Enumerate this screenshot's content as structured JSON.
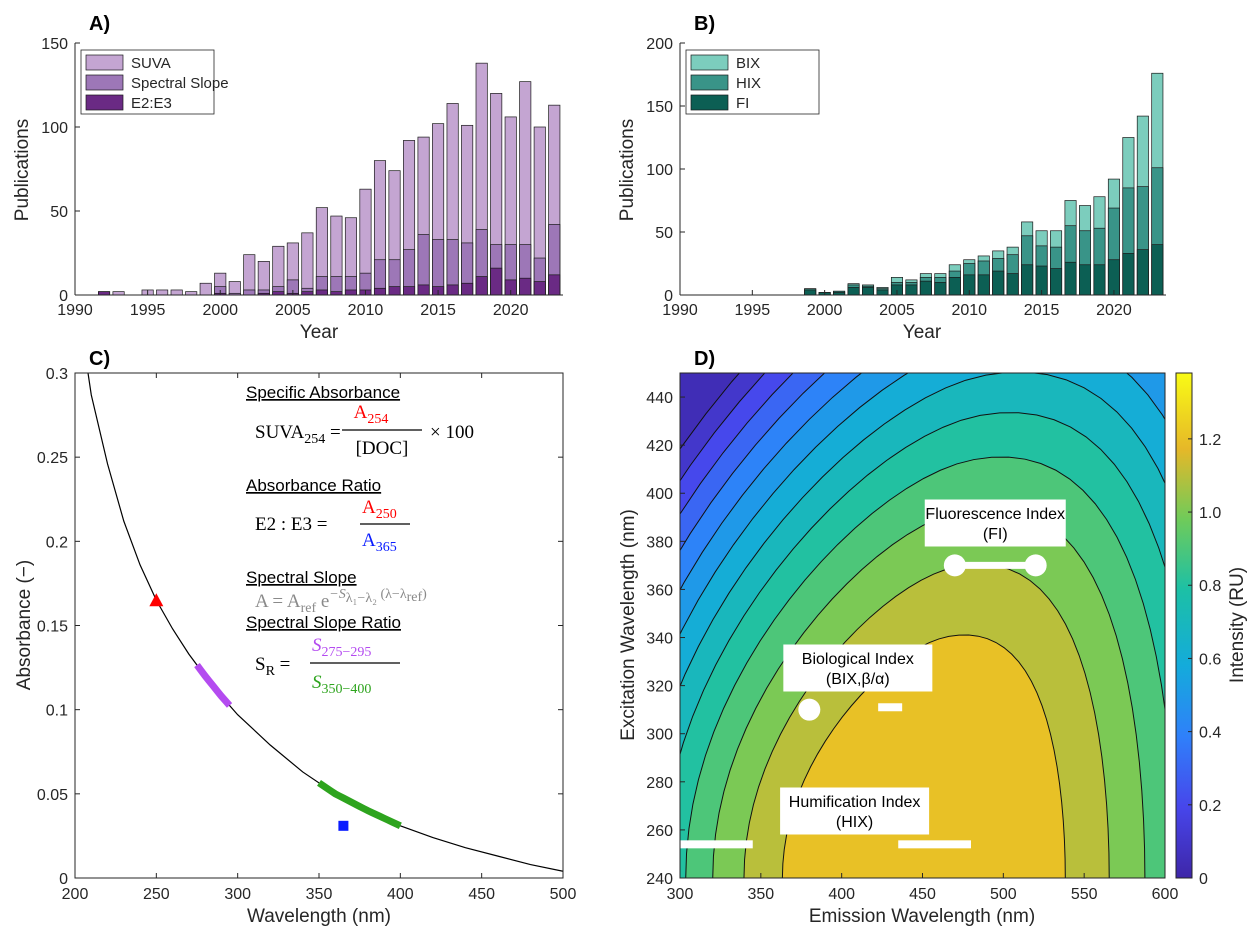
{
  "chart_data": [
    {
      "panel": "A)",
      "type": "bar",
      "stacked": true,
      "ylabel": "Publications",
      "xlabel": "Year",
      "xlim": [
        1990,
        2023.6
      ],
      "ylim": [
        0,
        150
      ],
      "xticks": [
        1990,
        1995,
        2000,
        2005,
        2010,
        2015,
        2020
      ],
      "yticks": [
        0,
        50,
        100,
        150
      ],
      "legend_position": "top-left",
      "years": [
        1992,
        1993,
        1995,
        1996,
        1997,
        1998,
        1999,
        2000,
        2001,
        2002,
        2003,
        2004,
        2005,
        2006,
        2007,
        2008,
        2009,
        2010,
        2011,
        2012,
        2013,
        2014,
        2015,
        2016,
        2017,
        2018,
        2019,
        2020,
        2021,
        2022,
        2023
      ],
      "series": [
        {
          "name": "SUVA",
          "color": "#c4a5d2",
          "totals": [
            2,
            2,
            3,
            3,
            3,
            2,
            7,
            13,
            8,
            24,
            20,
            29,
            31,
            37,
            52,
            47,
            46,
            63,
            80,
            74,
            92,
            94,
            102,
            114,
            101,
            138,
            120,
            106,
            127,
            100,
            113
          ]
        },
        {
          "name": "Spectral Slope",
          "color": "#9d77b7",
          "totals": [
            0,
            0,
            0,
            0,
            0,
            0,
            0,
            5,
            1,
            3,
            3,
            5,
            9,
            4,
            11,
            11,
            11,
            13,
            21,
            21,
            27,
            36,
            33,
            33,
            31,
            39,
            30,
            30,
            30,
            22,
            42
          ]
        },
        {
          "name": "E2:E3",
          "color": "#6a2a84",
          "totals": [
            2,
            0,
            0,
            0,
            0,
            0,
            0,
            1,
            0,
            0,
            1,
            2,
            1,
            2,
            3,
            2,
            3,
            3,
            4,
            5,
            5,
            6,
            5,
            6,
            7,
            11,
            16,
            9,
            10,
            8,
            12
          ]
        }
      ]
    },
    {
      "panel": "B)",
      "type": "bar",
      "stacked": true,
      "ylabel": "Publications",
      "xlabel": "Year",
      "xlim": [
        1990,
        2023.6
      ],
      "ylim": [
        0,
        200
      ],
      "xticks": [
        1990,
        1995,
        2000,
        2005,
        2010,
        2015,
        2020
      ],
      "yticks": [
        0,
        50,
        100,
        150,
        200
      ],
      "legend_position": "top-left",
      "years": [
        1999,
        2000,
        2001,
        2002,
        2003,
        2004,
        2005,
        2006,
        2007,
        2008,
        2009,
        2010,
        2011,
        2012,
        2013,
        2014,
        2015,
        2016,
        2017,
        2018,
        2019,
        2020,
        2021,
        2022,
        2023
      ],
      "series": [
        {
          "name": "BIX",
          "color": "#7ccdbd",
          "totals": [
            5,
            2,
            3,
            9,
            8,
            6,
            14,
            12,
            17,
            17,
            24,
            28,
            31,
            35,
            38,
            58,
            51,
            51,
            75,
            71,
            78,
            92,
            125,
            142,
            176
          ]
        },
        {
          "name": "HIX",
          "color": "#399488",
          "totals": [
            5,
            2,
            3,
            8,
            7,
            5,
            10,
            10,
            14,
            14,
            19,
            25,
            27,
            29,
            32,
            47,
            39,
            38,
            55,
            51,
            53,
            69,
            85,
            86,
            101
          ]
        },
        {
          "name": "FI",
          "color": "#0c5f54",
          "totals": [
            4,
            2,
            2,
            6,
            6,
            4,
            8,
            8,
            11,
            10,
            14,
            16,
            16,
            19,
            17,
            24,
            23,
            21,
            26,
            24,
            24,
            28,
            33,
            36,
            40
          ]
        }
      ]
    },
    {
      "panel": "C)",
      "type": "line",
      "xlabel": "Wavelength (nm)",
      "ylabel": "Absorbance (−)",
      "xlim": [
        200,
        500
      ],
      "ylim": [
        0,
        0.3
      ],
      "xticks": [
        200,
        250,
        300,
        350,
        400,
        450,
        500
      ],
      "yticks": [
        0,
        0.05,
        0.1,
        0.15,
        0.2,
        0.25,
        0.3
      ],
      "curve": {
        "x": [
          208,
          210,
          220,
          230,
          240,
          250,
          260,
          270,
          280,
          290,
          300,
          320,
          340,
          360,
          380,
          400,
          420,
          440,
          460,
          480,
          500
        ],
        "y": [
          0.3,
          0.287,
          0.246,
          0.212,
          0.186,
          0.165,
          0.148,
          0.133,
          0.12,
          0.108,
          0.097,
          0.079,
          0.063,
          0.05,
          0.04,
          0.031,
          0.024,
          0.018,
          0.013,
          0.008,
          0.004
        ]
      },
      "markers": [
        {
          "label": "A254",
          "x": 250,
          "y": 0.165,
          "shape": "triangle",
          "color": "#ff0000"
        },
        {
          "label": "A365",
          "x": 365,
          "y": 0.031,
          "shape": "square",
          "color": "#0a1cff"
        }
      ],
      "segments": [
        {
          "label": "S275-295",
          "x": [
            275,
            295
          ],
          "color": "#b44bf0"
        },
        {
          "label": "S350-400",
          "x": [
            350,
            400
          ],
          "color": "#2ea41e"
        }
      ],
      "equations": {
        "h1": "Specific Absorbance",
        "suva_lhs": "SUVA",
        "suva_sub": "254",
        "suva_num": "A",
        "suva_num_sub": "254",
        "suva_den": "[DOC]",
        "suva_tail": "× 100",
        "h2": "Absorbance Ratio",
        "ratio_lhs": "E2 : E3 =",
        "ratio_num": "A",
        "ratio_num_sub": "250",
        "ratio_den": "A",
        "ratio_den_sub": "365",
        "h3": "Spectral Slope",
        "slope_eq": "A = A",
        "slope_ref": "ref",
        "slope_e": "e",
        "slope_exp": "−S",
        "slope_exp_sub": "λ₁−λ₂",
        "slope_exp_tail": "(λ−λ",
        "slope_exp_ref": "ref",
        "slope_exp_close": ")",
        "h4": "Spectral Slope Ratio",
        "sr_lhs": "S",
        "sr_sub": "R",
        "sr_eq": "=",
        "sr_num": "S",
        "sr_num_sub": "275−295",
        "sr_den": "S",
        "sr_den_sub": "350−400"
      }
    },
    {
      "panel": "D)",
      "type": "heatmap",
      "xlabel": "Emission Wavelength (nm)",
      "ylabel": "Excitation Wavelength (nm)",
      "colorbar_label": "Intensity (RU)",
      "xlim": [
        300,
        600
      ],
      "ylim": [
        240,
        450
      ],
      "xticks": [
        300,
        350,
        400,
        450,
        500,
        550,
        600
      ],
      "yticks": [
        240,
        260,
        280,
        300,
        320,
        340,
        360,
        380,
        400,
        420,
        440
      ],
      "clim": [
        0,
        1.38
      ],
      "colorbar_ticks": [
        0,
        0.2,
        0.4,
        0.6,
        0.8,
        1.0,
        1.2
      ],
      "colorbar_tick_labels": [
        "0",
        "0.2",
        "0.4",
        "0.6",
        "0.8",
        "1.0",
        "1.2"
      ],
      "peak": {
        "em": 445,
        "ex": 240,
        "intensity": 1.35
      },
      "annotations": [
        {
          "label1": "Fluorescence Index",
          "label2": "(FI)",
          "em": [
            470,
            520
          ],
          "ex": 370,
          "kind": "dots"
        },
        {
          "label1": "Biological Index",
          "label2": "(BIX,β/α)",
          "em": [
            380,
            430
          ],
          "ex": 310,
          "kind": "dot-bar"
        },
        {
          "label1": "Humification Index",
          "label2": "(HIX)",
          "em": [
            300,
            345,
            435,
            480
          ],
          "ex": 254,
          "kind": "bars"
        }
      ]
    }
  ]
}
